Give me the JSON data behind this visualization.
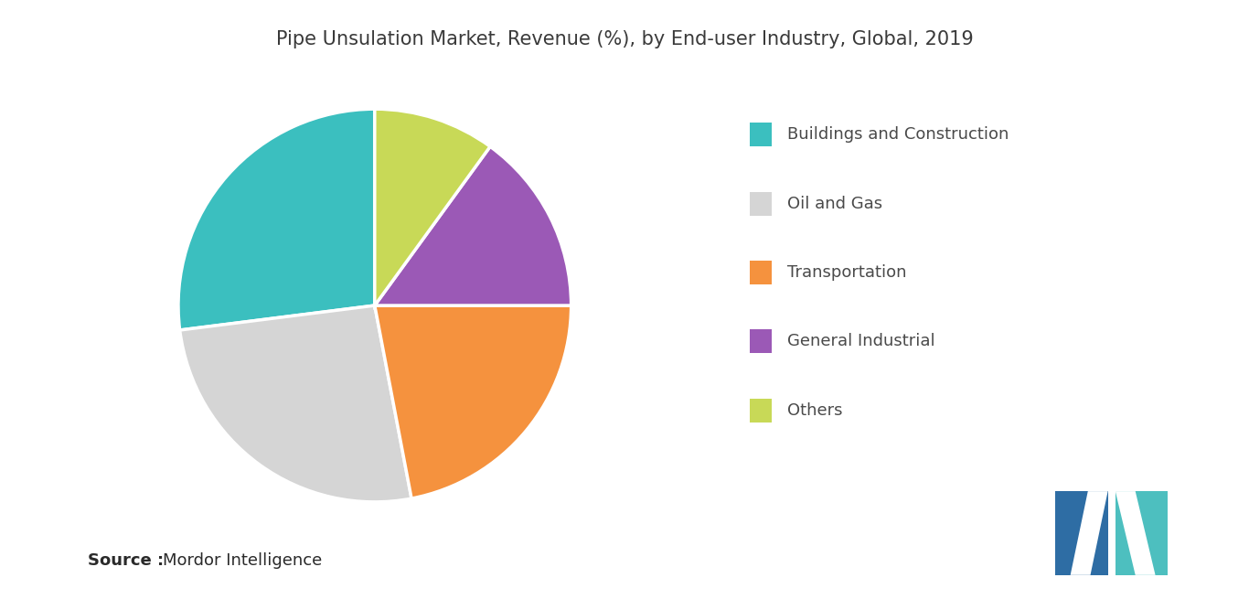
{
  "title": "Pipe Unsulation Market, Revenue (%), by End-user Industry, Global, 2019",
  "slices": [
    {
      "label": "Buildings and Construction",
      "value": 27,
      "color": "#3bbfbf"
    },
    {
      "label": "Oil and Gas",
      "value": 26,
      "color": "#d5d5d5"
    },
    {
      "label": "Transportation",
      "value": 22,
      "color": "#f5923e"
    },
    {
      "label": "General Industrial",
      "value": 15,
      "color": "#9b59b6"
    },
    {
      "label": "Others",
      "value": 10,
      "color": "#c8d957"
    }
  ],
  "source_bold": "Source :",
  "source_text": "Mordor Intelligence",
  "background_color": "#ffffff",
  "title_fontsize": 15,
  "legend_fontsize": 13,
  "source_fontsize": 13,
  "startangle": 90,
  "logo_colors": {
    "dark_blue": "#2e6da4",
    "teal_left": "#4dbfbf",
    "teal_right": "#3bbfbf",
    "light_teal": "#7dd6d6"
  }
}
